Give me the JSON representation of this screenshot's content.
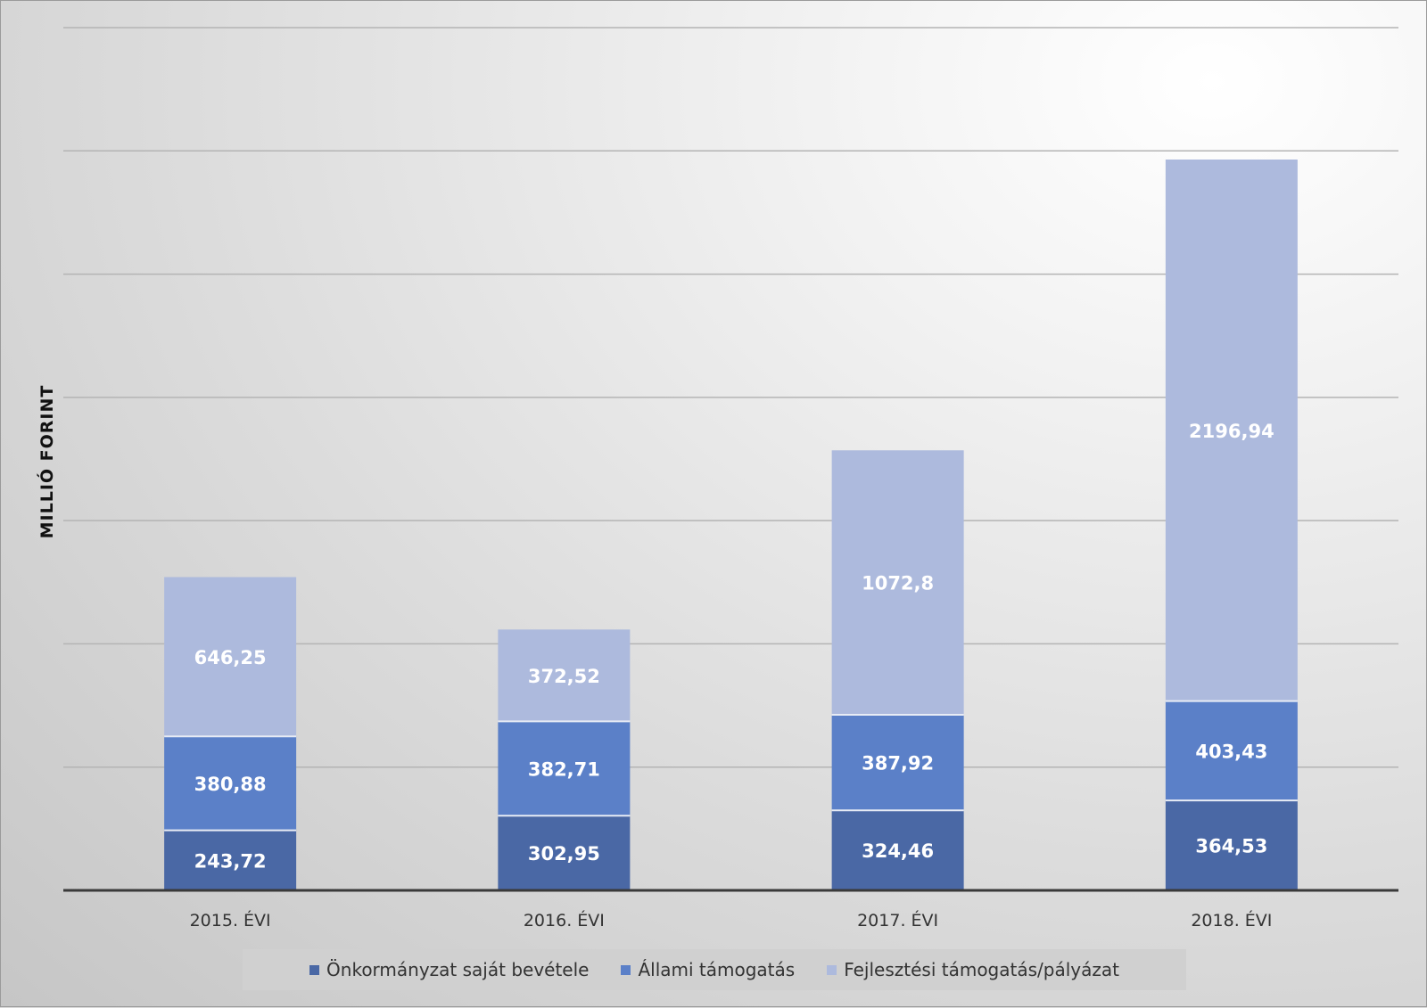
{
  "chart_data": {
    "type": "bar",
    "stacked": true,
    "categories": [
      "2015. ÉVI",
      "2016. ÉVI",
      "2017. ÉVI",
      "2018. ÉVI"
    ],
    "series": [
      {
        "name": "Önkormányzat saját bevétele",
        "color": "#4a68a5",
        "values": [
          243.72,
          302.95,
          324.46,
          364.53
        ],
        "labels": [
          "243,72",
          "302,95",
          "324,46",
          "364,53"
        ]
      },
      {
        "name": "Állami támogatás",
        "color": "#5b80c8",
        "values": [
          380.88,
          382.71,
          387.92,
          403.43
        ],
        "labels": [
          "380,88",
          "382,71",
          "387,92",
          "403,43"
        ]
      },
      {
        "name": "Fejlesztési támogatás/pályázat",
        "color": "#adbadd",
        "values": [
          646.25,
          372.52,
          1072.8,
          2196.94
        ],
        "labels": [
          "646,25",
          "372,52",
          "1072,8",
          "2196,94"
        ]
      }
    ],
    "ylabel": "MILLIÓ FORINT",
    "ylim": [
      0,
      3500
    ],
    "ytick_step": 500,
    "y_tick_labels_visible": false,
    "grid": true,
    "legend_position": "bottom"
  }
}
